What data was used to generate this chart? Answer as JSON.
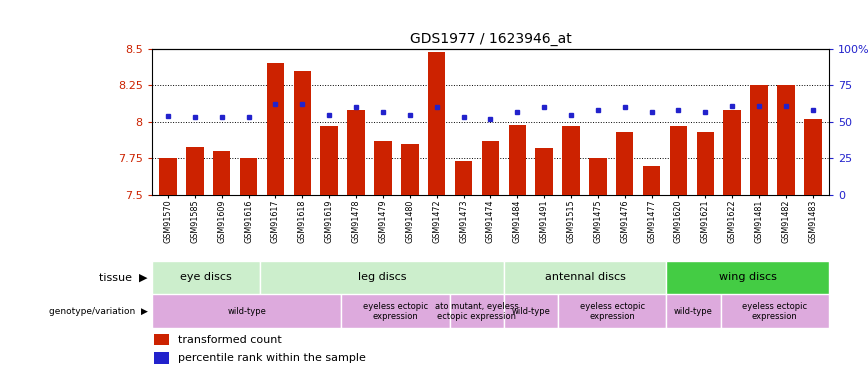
{
  "title": "GDS1977 / 1623946_at",
  "samples": [
    "GSM91570",
    "GSM91585",
    "GSM91609",
    "GSM91616",
    "GSM91617",
    "GSM91618",
    "GSM91619",
    "GSM91478",
    "GSM91479",
    "GSM91480",
    "GSM91472",
    "GSM91473",
    "GSM91474",
    "GSM91484",
    "GSM91491",
    "GSM91515",
    "GSM91475",
    "GSM91476",
    "GSM91477",
    "GSM91620",
    "GSM91621",
    "GSM91622",
    "GSM91481",
    "GSM91482",
    "GSM91483"
  ],
  "bar_values": [
    7.75,
    7.83,
    7.8,
    7.75,
    8.4,
    8.35,
    7.97,
    8.08,
    7.87,
    7.85,
    8.48,
    7.73,
    7.87,
    7.98,
    7.82,
    7.97,
    7.75,
    7.93,
    7.7,
    7.97,
    7.93,
    8.08,
    8.25,
    8.25,
    8.02
  ],
  "dot_values_pct": [
    54,
    53,
    53,
    53,
    62,
    62,
    55,
    60,
    57,
    55,
    60,
    53,
    52,
    57,
    60,
    55,
    58,
    60,
    57,
    58,
    57,
    61,
    61,
    61,
    58
  ],
  "ymin": 7.5,
  "ymax": 8.5,
  "yticks": [
    7.5,
    7.75,
    8.0,
    8.25,
    8.5
  ],
  "ytick_labels": [
    "7.5",
    "7.75",
    "8",
    "8.25",
    "8.5"
  ],
  "y2ticks": [
    0,
    25,
    50,
    75,
    100
  ],
  "y2tick_labels": [
    "0",
    "25",
    "50",
    "75",
    "100%"
  ],
  "bar_color": "#cc2200",
  "dot_color": "#2222cc",
  "tissue_regions": [
    {
      "label": "eye discs",
      "start": 0,
      "end": 4
    },
    {
      "label": "leg discs",
      "start": 4,
      "end": 13
    },
    {
      "label": "antennal discs",
      "start": 13,
      "end": 19
    },
    {
      "label": "wing discs",
      "start": 19,
      "end": 25
    }
  ],
  "tissue_colors": [
    "#cceecc",
    "#cceecc",
    "#cceecc",
    "#44cc44"
  ],
  "genotype_regions": [
    {
      "label": "wild-type",
      "start": 0,
      "end": 7
    },
    {
      "label": "eyeless ectopic\nexpression",
      "start": 7,
      "end": 11
    },
    {
      "label": "ato mutant, eyeless\nectopic expression",
      "start": 11,
      "end": 13
    },
    {
      "label": "wild-type",
      "start": 13,
      "end": 15
    },
    {
      "label": "eyeless ectopic\nexpression",
      "start": 15,
      "end": 19
    },
    {
      "label": "wild-type",
      "start": 19,
      "end": 21
    },
    {
      "label": "eyeless ectopic\nexpression",
      "start": 21,
      "end": 25
    }
  ],
  "genotype_color": "#ddaadd"
}
